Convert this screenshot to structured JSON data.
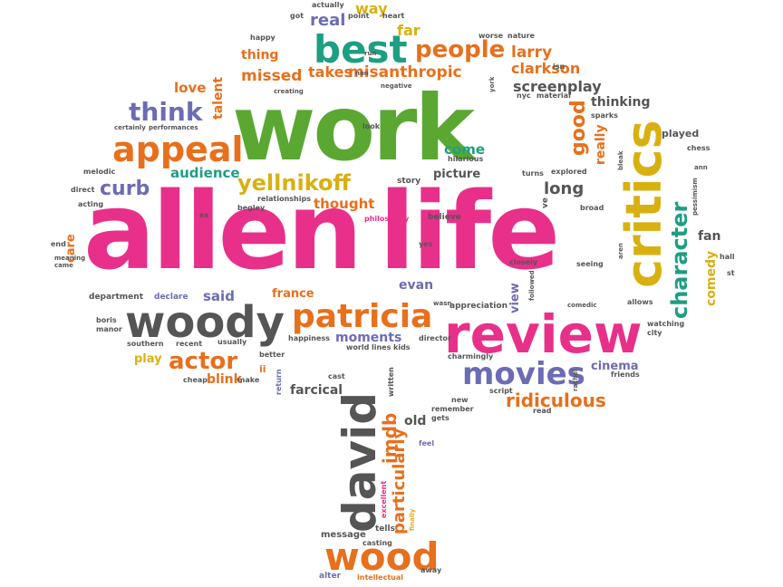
{
  "colors": {
    "pink": "#e8308a",
    "green": "#5aa832",
    "teal": "#1e9e82",
    "orange": "#e86f1c",
    "yellow": "#d9b012",
    "purple": "#6c6cb4",
    "gray": "#555555"
  },
  "words": {
    "allen": "allen",
    "life": "life",
    "work": "work",
    "critics": "critics",
    "review": "review",
    "woody": "woody",
    "patricia": "patricia",
    "best": "best",
    "appeal": "appeal",
    "david": "david",
    "wood": "wood",
    "movies": "movies",
    "character": "character",
    "people": "people",
    "think": "think",
    "actor": "actor",
    "yellnikoff": "yellnikoff",
    "curb": "curb",
    "ridiculous": "ridiculous",
    "particularly": "particularly",
    "imdb": "imdb",
    "screenplay": "screenplay",
    "misanthropic": "misanthropic",
    "larry": "larry",
    "clarkson": "clarkson",
    "missed": "missed",
    "takes": "takes",
    "far": "far",
    "way": "way",
    "real": "real",
    "thing": "thing",
    "love": "love",
    "talent": "talent",
    "audience": "audience",
    "thought": "thought",
    "long": "long",
    "good": "good",
    "really": "really",
    "thinking": "thinking",
    "come": "come",
    "picture": "picture",
    "comedy": "comedy",
    "fan": "fan",
    "said": "said",
    "france": "france",
    "evan": "evan",
    "moments": "moments",
    "farcical": "farcical",
    "old": "old",
    "blink": "blink",
    "play": "play",
    "cinema": "cinema",
    "view": "view",
    "care": "care",
    "department": "department",
    "declare": "declare",
    "played": "played",
    "story": "story",
    "believe": "believe",
    "philosophy": "philosophy",
    "relationships": "relationships",
    "appreciation": "appreciation",
    "director": "director",
    "message": "message",
    "alter": "alter",
    "intellectual": "intellectual",
    "tells": "tells",
    "casting": "casting",
    "away": "away",
    "excellent": "excellent",
    "remember": "remember",
    "new": "new",
    "gets": "gets",
    "feel": "feel",
    "script": "script",
    "charmingly": "charmingly",
    "cast": "cast",
    "written": "written",
    "return": "return",
    "make": "make",
    "cheap": "cheap",
    "ii": "ii",
    "better": "better",
    "happiness": "happiness",
    "world": "world",
    "lines": "lines",
    "kids": "kids",
    "usually": "usually",
    "recent": "recent",
    "southern": "southern",
    "boris": "boris",
    "manor": "manor",
    "meaning": "meaning",
    "came": "came",
    "end": "end",
    "acting": "acting",
    "direct": "direct",
    "melodic": "melodic",
    "certainly": "certainly",
    "performances": "performances",
    "ex": "ex",
    "begley": "begley",
    "actually": "actually",
    "got": "got",
    "point": "point",
    "heart": "heart",
    "run": "run",
    "worse": "worse",
    "nature": "nature",
    "isn": "isn",
    "happy": "happy",
    "creating": "creating",
    "non": "non",
    "negative": "negative",
    "nyc": "nyc",
    "material": "material",
    "sparks": "sparks",
    "look": "look",
    "hilarious": "hilarious",
    "turns": "turns",
    "explored": "explored",
    "broad": "broad",
    "bleak": "bleak",
    "chess": "chess",
    "ann": "ann",
    "pessimism": "pessimism",
    "york": "york",
    "yes": "yes",
    "closely": "closely",
    "seeing": "seeing",
    "aren": "aren",
    "hall": "hall",
    "st": "st",
    "allows": "allows",
    "watching": "watching",
    "city": "city",
    "followed": "followed",
    "comedic": "comedic",
    "wasn": "wasn",
    "friends": "friends",
    "rachel": "rachel",
    "read": "read",
    "ve": "ve",
    "finally": "finally"
  }
}
